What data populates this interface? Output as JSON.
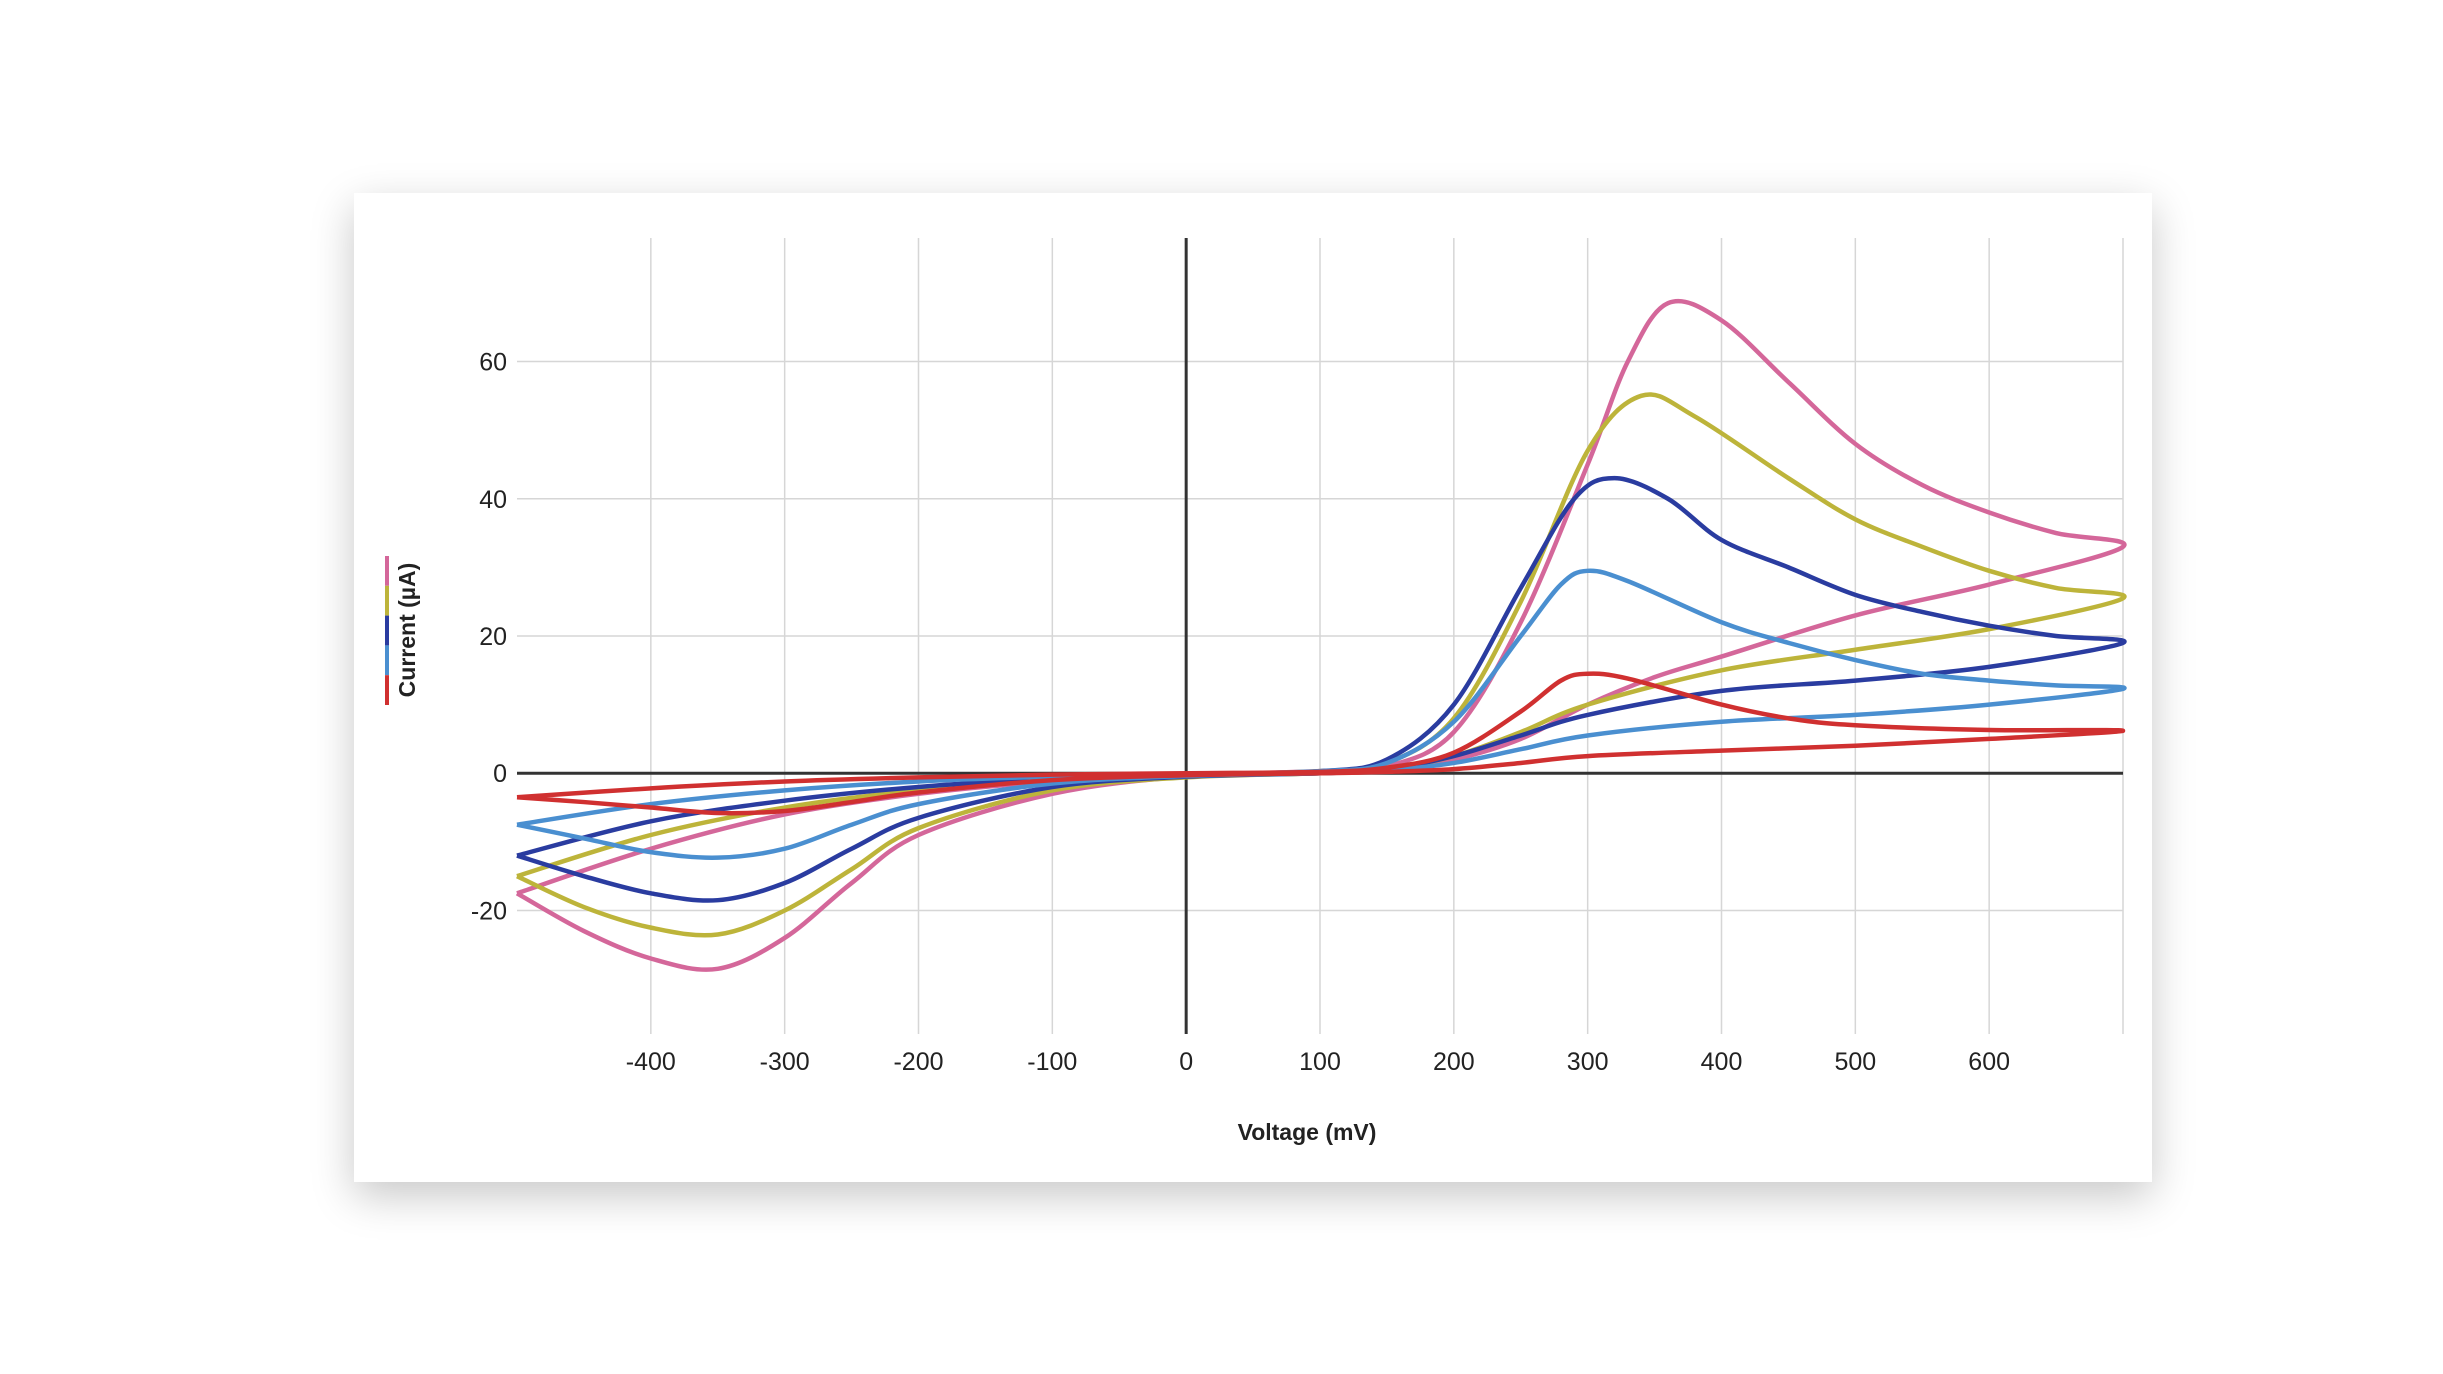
{
  "chart_data": {
    "type": "line",
    "title": "",
    "xlabel": "Voltage (mV)",
    "ylabel": "Current (µA)",
    "xlim": [
      -500,
      700
    ],
    "ylim": [
      -38,
      78
    ],
    "xticks": [
      -400,
      -300,
      -200,
      -100,
      0,
      100,
      200,
      300,
      400,
      500,
      600
    ],
    "yticks": [
      -20,
      0,
      20,
      40,
      60
    ],
    "grid": true,
    "legend": "left, stacked color bar beside y-axis label",
    "series": [
      {
        "name": "pink",
        "color": "#d4679a",
        "x": [
          -500,
          -400,
          -300,
          -200,
          -100,
          0,
          100,
          150,
          200,
          250,
          300,
          330,
          360,
          400,
          450,
          500,
          550,
          600,
          650,
          700,
          600,
          500,
          400,
          350,
          300,
          250,
          200,
          150,
          100,
          0,
          -100,
          -200,
          -250,
          -300,
          -350,
          -400,
          -450,
          -500
        ],
        "y": [
          -17.5,
          -11,
          -6,
          -3,
          -1.2,
          -0.3,
          0.3,
          1,
          6,
          22,
          45,
          60,
          68.5,
          66,
          57,
          48,
          42,
          38,
          35,
          33,
          27.5,
          23,
          17,
          14,
          10,
          5,
          2,
          0.5,
          0,
          -0.5,
          -3,
          -9,
          -16,
          -24,
          -28.5,
          -27,
          -23,
          -17.5
        ]
      },
      {
        "name": "yellow",
        "color": "#bdb43a",
        "x": [
          -500,
          -400,
          -300,
          -200,
          -100,
          0,
          100,
          150,
          200,
          250,
          300,
          340,
          380,
          450,
          500,
          550,
          600,
          650,
          700,
          600,
          500,
          400,
          300,
          250,
          200,
          150,
          100,
          0,
          -100,
          -200,
          -250,
          -300,
          -350,
          -400,
          -450,
          -500
        ],
        "y": [
          -15,
          -9,
          -5,
          -2.5,
          -1,
          -0.3,
          0.3,
          1.5,
          8,
          25,
          47,
          55,
          52,
          43,
          37,
          33,
          29.5,
          27,
          25.5,
          21,
          18,
          15,
          10,
          6,
          2.5,
          0.6,
          0,
          -0.6,
          -2.5,
          -8,
          -14,
          -20,
          -23.5,
          -22.5,
          -19.5,
          -15
        ]
      },
      {
        "name": "dark-blue",
        "color": "#2a3ca0",
        "x": [
          -500,
          -400,
          -300,
          -200,
          -100,
          0,
          100,
          150,
          200,
          250,
          290,
          320,
          360,
          400,
          450,
          500,
          550,
          600,
          650,
          700,
          600,
          500,
          400,
          300,
          250,
          200,
          150,
          100,
          0,
          -100,
          -200,
          -250,
          -300,
          -350,
          -400,
          -450,
          -500
        ],
        "y": [
          -12,
          -7,
          -4,
          -2,
          -0.8,
          -0.3,
          0.3,
          2,
          10,
          27,
          40,
          43,
          40,
          34,
          30,
          26,
          23.5,
          21.5,
          20,
          19,
          15.5,
          13.5,
          12,
          8.5,
          5.5,
          2.5,
          0.6,
          0,
          -0.5,
          -2,
          -6.5,
          -11,
          -16,
          -18.5,
          -17.5,
          -15,
          -12
        ]
      },
      {
        "name": "light-blue",
        "color": "#4a8fd0",
        "x": [
          -500,
          -400,
          -300,
          -200,
          -100,
          0,
          100,
          150,
          200,
          250,
          280,
          300,
          330,
          400,
          450,
          500,
          550,
          600,
          650,
          700,
          600,
          500,
          400,
          300,
          250,
          200,
          150,
          100,
          0,
          -100,
          -200,
          -250,
          -300,
          -350,
          -400,
          -450,
          -500
        ],
        "y": [
          -7.5,
          -4.5,
          -2.5,
          -1.2,
          -0.5,
          -0.2,
          0.3,
          1.5,
          7.5,
          20,
          27.5,
          29.5,
          28,
          22,
          19,
          16.5,
          14.5,
          13.5,
          12.8,
          12.3,
          10,
          8.5,
          7.5,
          5.5,
          3.5,
          1.5,
          0.4,
          0,
          -0.4,
          -1.5,
          -4.5,
          -7.5,
          -11,
          -12.3,
          -11.5,
          -9.5,
          -7.5
        ]
      },
      {
        "name": "red",
        "color": "#d03030",
        "x": [
          -500,
          -400,
          -300,
          -200,
          -100,
          0,
          100,
          150,
          200,
          250,
          280,
          300,
          330,
          400,
          450,
          500,
          600,
          700,
          600,
          500,
          400,
          300,
          250,
          200,
          150,
          100,
          0,
          -100,
          -200,
          -250,
          -300,
          -350,
          -400,
          -450,
          -500
        ],
        "y": [
          -3.5,
          -2.2,
          -1.2,
          -0.6,
          -0.2,
          0,
          0.2,
          0.8,
          3,
          9,
          13.5,
          14.5,
          13.8,
          10,
          8,
          7,
          6.3,
          6.2,
          5,
          4,
          3.3,
          2.5,
          1.5,
          0.6,
          0.2,
          0,
          -0.3,
          -1,
          -2.8,
          -4.2,
          -5.5,
          -5.8,
          -5,
          -4.2,
          -3.5
        ]
      }
    ]
  }
}
